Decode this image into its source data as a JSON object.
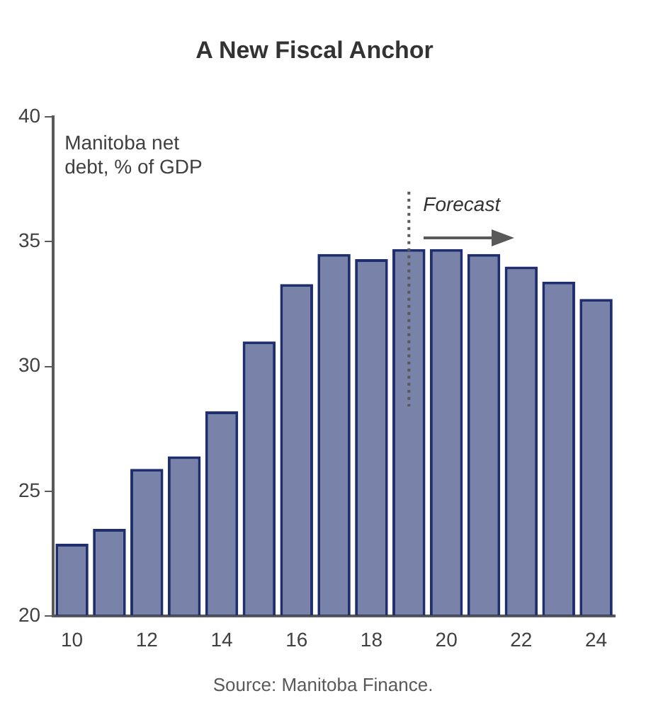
{
  "chart_data": {
    "type": "bar",
    "title": "A New Fiscal Anchor",
    "x": [
      10,
      11,
      12,
      13,
      14,
      15,
      16,
      17,
      18,
      19,
      20,
      21,
      22,
      23,
      24
    ],
    "values": [
      22.9,
      23.5,
      25.9,
      26.4,
      28.2,
      31.0,
      33.3,
      34.5,
      34.3,
      34.7,
      34.7,
      34.5,
      34.0,
      33.4,
      32.7
    ],
    "color": "#1f2f6e",
    "xlim": [
      9.5,
      24.5
    ],
    "xticks": [
      10,
      12,
      14,
      16,
      18,
      20,
      22,
      24
    ],
    "ylim": [
      20,
      40
    ],
    "yticks": [
      20,
      25,
      30,
      35,
      40
    ],
    "grid": false,
    "legend": false,
    "ref_lines": [
      {
        "axis": "x",
        "value": 19,
        "label": "Forecast",
        "line_style": "dotted",
        "color": "#595959"
      }
    ],
    "annotations": [
      "Manitoba net debt, % of GDP",
      "Source: Manitoba Finance."
    ]
  }
}
